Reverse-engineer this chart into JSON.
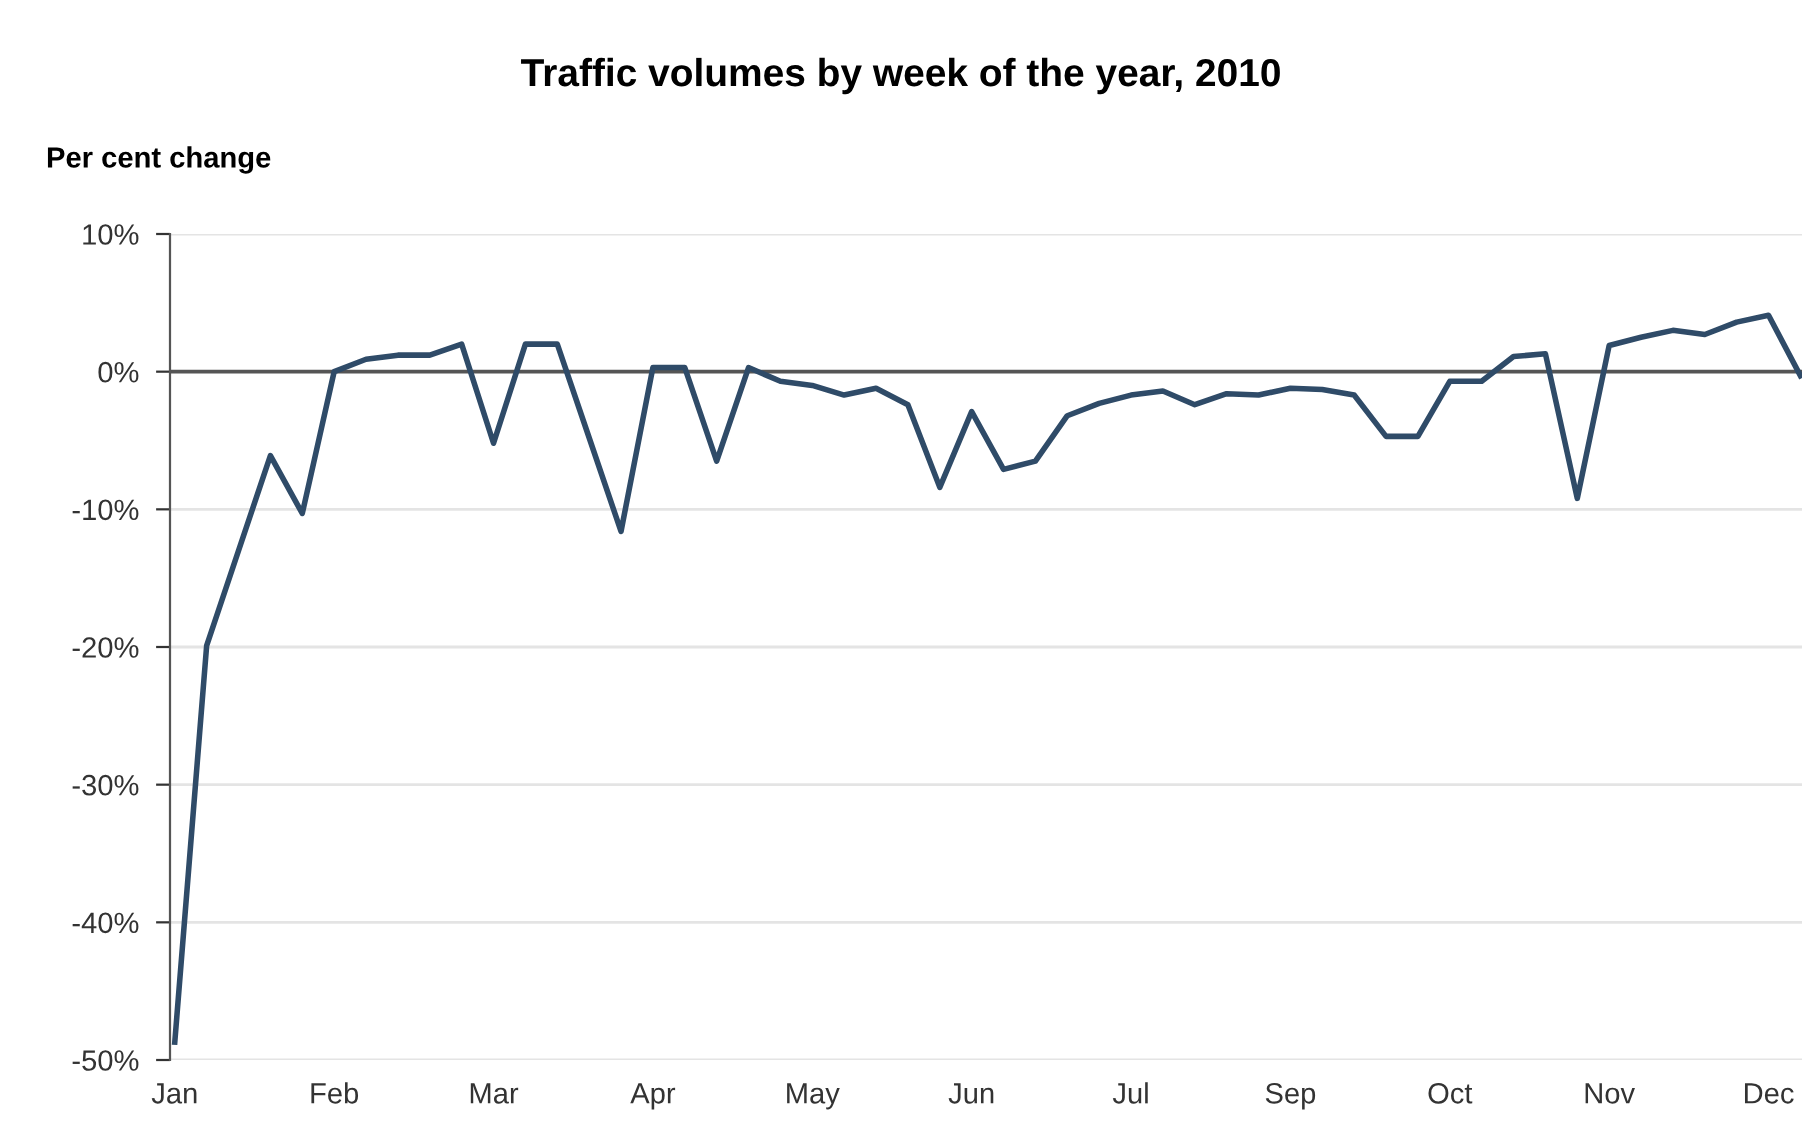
{
  "chart_data": {
    "type": "line",
    "title": "Traffic volumes by week of the year, 2010",
    "ylabel": "Per cent change",
    "categories": [
      "Jan",
      null,
      null,
      null,
      null,
      "Feb",
      null,
      null,
      null,
      null,
      "Mar",
      null,
      null,
      null,
      null,
      "Apr",
      null,
      null,
      null,
      null,
      "May",
      null,
      null,
      null,
      null,
      "Jun",
      null,
      null,
      null,
      null,
      "Jul",
      null,
      null,
      null,
      null,
      "Sep",
      null,
      null,
      null,
      null,
      "Oct",
      null,
      null,
      null,
      null,
      "Nov",
      null,
      null,
      null,
      null,
      "Dec",
      null
    ],
    "series": [
      {
        "color": "#2f4b68",
        "values": [
          -48.7,
          -19.9,
          -13,
          -6.1,
          -10.3,
          0,
          0.9,
          1.2,
          1.2,
          2.0,
          -5.2,
          2.0,
          2.0,
          -4.8,
          -11.6,
          0.3,
          0.3,
          -6.5,
          0.3,
          -0.7,
          -1.0,
          -1.7,
          -1.2,
          -2.4,
          -8.4,
          -2.9,
          -7.1,
          -6.5,
          -3.2,
          -2.3,
          -1.7,
          -1.4,
          -2.4,
          -1.6,
          -1.7,
          -1.2,
          -1.3,
          -1.7,
          -4.7,
          -4.7,
          -0.7,
          -0.7,
          1.1,
          1.3,
          -9.2,
          1.9,
          2.5,
          3.0,
          2.7,
          3.6,
          4.1,
          -0.3
        ]
      }
    ],
    "ylim": [
      -50,
      10
    ],
    "yticks": [
      {
        "value": -50,
        "label": "-50%"
      },
      {
        "value": -40,
        "label": "-40%"
      },
      {
        "value": -30,
        "label": "-30%"
      },
      {
        "value": -20,
        "label": "-20%"
      },
      {
        "value": -10,
        "label": "-10%"
      },
      {
        "value": 0,
        "label": "0%"
      },
      {
        "value": 10,
        "label": "10%"
      }
    ],
    "ref_lines": [
      {
        "axis": "y",
        "value": 0,
        "color": "#555555"
      }
    ],
    "grid": "y",
    "legend": false,
    "marker": "none",
    "line_style": "solid"
  }
}
